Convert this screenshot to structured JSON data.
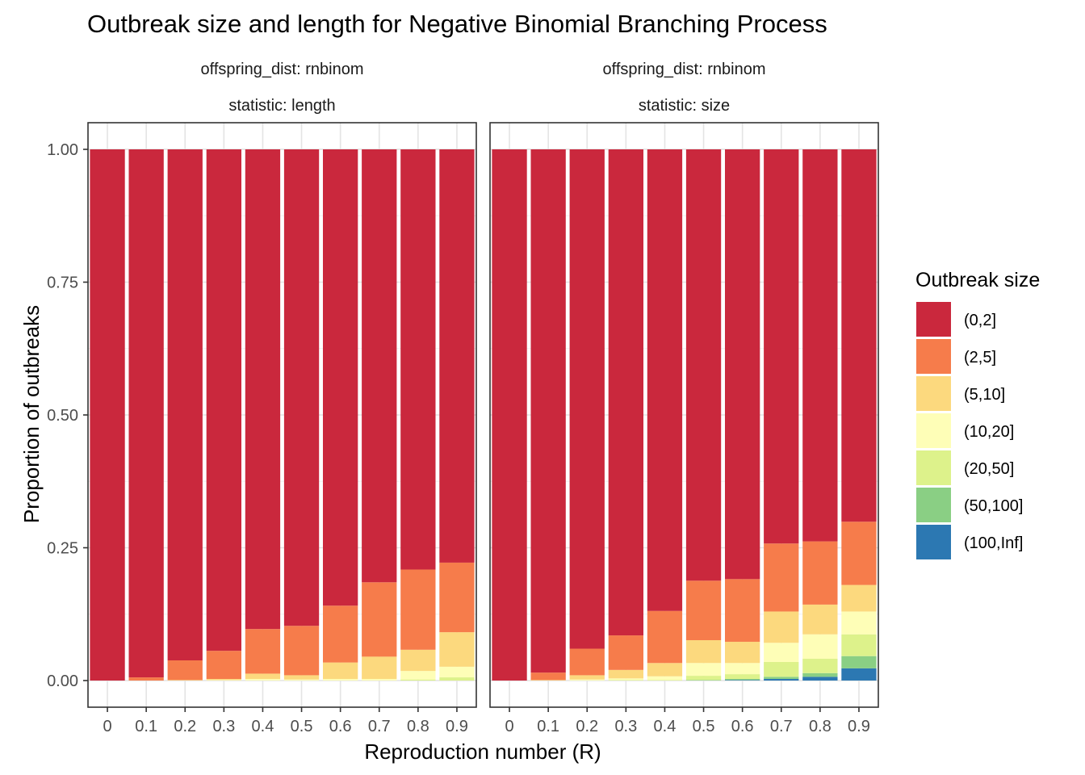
{
  "chart_data": {
    "type": "bar",
    "stacked": true,
    "title": "Outbreak size and length for Negative Binomial Branching Process",
    "xlabel": "Reproduction number (R)",
    "ylabel": "Proportion of outbreaks",
    "ylim": [
      0,
      1
    ],
    "yticks": [
      "0.00",
      "0.25",
      "0.50",
      "0.75",
      "1.00"
    ],
    "categories": [
      "0",
      "0.1",
      "0.2",
      "0.3",
      "0.4",
      "0.5",
      "0.6",
      "0.7",
      "0.8",
      "0.9"
    ],
    "grid": true,
    "legend": {
      "title": "Outbreak size",
      "position": "right",
      "items": [
        {
          "label": "(0,2]",
          "color": "#CA283D"
        },
        {
          "label": "(2,5]",
          "color": "#F67C4B"
        },
        {
          "label": "(5,10]",
          "color": "#FCD97E"
        },
        {
          "label": "(10,20]",
          "color": "#FEFEB7"
        },
        {
          "label": "(20,50]",
          "color": "#DDF28B"
        },
        {
          "label": "(50,100]",
          "color": "#8ACF84"
        },
        {
          "label": "(100,Inf]",
          "color": "#2C78B2"
        }
      ]
    },
    "panels": [
      {
        "strip": [
          "offspring_dist: rnbinom",
          "statistic: length"
        ],
        "series": [
          {
            "name": "(0,2]",
            "values": [
              1.0,
              0.994,
              0.962,
              0.944,
              0.903,
              0.897,
              0.859,
              0.815,
              0.791,
              0.778
            ]
          },
          {
            "name": "(2,5]",
            "values": [
              0,
              0.006,
              0.037,
              0.053,
              0.084,
              0.093,
              0.107,
              0.14,
              0.151,
              0.131
            ]
          },
          {
            "name": "(5,10]",
            "values": [
              0,
              0,
              0.001,
              0.002,
              0.01,
              0.008,
              0.031,
              0.042,
              0.04,
              0.065
            ]
          },
          {
            "name": "(10,20]",
            "values": [
              0,
              0,
              0,
              0.001,
              0.003,
              0.002,
              0.003,
              0.003,
              0.016,
              0.02
            ]
          },
          {
            "name": "(20,50]",
            "values": [
              0,
              0,
              0,
              0,
              0,
              0,
              0,
              0,
              0.002,
              0.006
            ]
          },
          {
            "name": "(50,100]",
            "values": [
              0,
              0,
              0,
              0,
              0,
              0,
              0,
              0,
              0,
              0
            ]
          },
          {
            "name": "(100,Inf]",
            "values": [
              0,
              0,
              0,
              0,
              0,
              0,
              0,
              0,
              0,
              0
            ]
          }
        ]
      },
      {
        "strip": [
          "offspring_dist: rnbinom",
          "statistic: size"
        ],
        "series": [
          {
            "name": "(0,2]",
            "values": [
              1.0,
              0.985,
              0.94,
              0.915,
              0.869,
              0.812,
              0.809,
              0.742,
              0.738,
              0.701
            ]
          },
          {
            "name": "(2,5]",
            "values": [
              0,
              0.014,
              0.05,
              0.065,
              0.098,
              0.112,
              0.118,
              0.128,
              0.119,
              0.119
            ]
          },
          {
            "name": "(5,10]",
            "values": [
              0,
              0.001,
              0.008,
              0.016,
              0.025,
              0.043,
              0.04,
              0.059,
              0.056,
              0.05
            ]
          },
          {
            "name": "(10,20]",
            "values": [
              0,
              0,
              0.002,
              0.003,
              0.007,
              0.024,
              0.021,
              0.036,
              0.046,
              0.043
            ]
          },
          {
            "name": "(20,50]",
            "values": [
              0,
              0,
              0,
              0.001,
              0.001,
              0.008,
              0.009,
              0.028,
              0.027,
              0.041
            ]
          },
          {
            "name": "(50,100]",
            "values": [
              0,
              0,
              0,
              0,
              0,
              0.001,
              0.002,
              0.004,
              0.007,
              0.023
            ]
          },
          {
            "name": "(100,Inf]",
            "values": [
              0,
              0,
              0,
              0,
              0,
              0,
              0.001,
              0.003,
              0.007,
              0.023
            ]
          }
        ]
      }
    ]
  }
}
